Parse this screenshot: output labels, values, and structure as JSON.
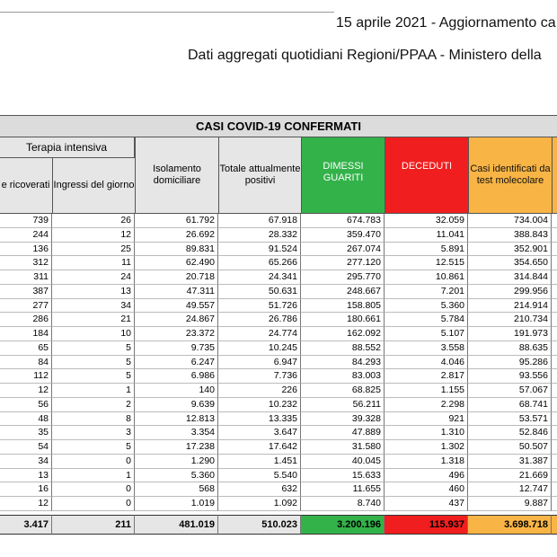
{
  "header": {
    "title": "15 aprile 2021 - Aggiornamento ca",
    "subtitle": "Dati aggregati quotidiani Regioni/PPAA - Ministero della"
  },
  "table": {
    "group_header": "CASI COVID-19 CONFERMATI",
    "subgroup_header": "Terapia intensiva",
    "columns": [
      "e ricoverati",
      "Ingressi del giorno",
      "Isolamento domiciliare",
      "Totale attualmente positivi",
      "DIMESSI GUARITI",
      "DECEDUTI",
      "Casi identificati da test molecolare"
    ],
    "rows": [
      [
        "739",
        "26",
        "61.792",
        "67.918",
        "674.783",
        "32.059",
        "734.004"
      ],
      [
        "244",
        "12",
        "26.692",
        "28.332",
        "359.470",
        "11.041",
        "388.843"
      ],
      [
        "136",
        "25",
        "89.831",
        "91.524",
        "267.074",
        "5.891",
        "352.901"
      ],
      [
        "312",
        "11",
        "62.490",
        "65.266",
        "277.120",
        "12.515",
        "354.650"
      ],
      [
        "311",
        "24",
        "20.718",
        "24.341",
        "295.770",
        "10.861",
        "314.844"
      ],
      [
        "387",
        "13",
        "47.311",
        "50.631",
        "248.667",
        "7.201",
        "299.956"
      ],
      [
        "277",
        "34",
        "49.557",
        "51.726",
        "158.805",
        "5.360",
        "214.914"
      ],
      [
        "286",
        "21",
        "24.867",
        "26.786",
        "180.661",
        "5.784",
        "210.734"
      ],
      [
        "184",
        "10",
        "23.372",
        "24.774",
        "162.092",
        "5.107",
        "191.973"
      ],
      [
        "65",
        "5",
        "9.735",
        "10.245",
        "88.552",
        "3.558",
        "88.635"
      ],
      [
        "84",
        "5",
        "6.247",
        "6.947",
        "84.293",
        "4.046",
        "95.286"
      ],
      [
        "112",
        "5",
        "6.986",
        "7.736",
        "83.003",
        "2.817",
        "93.556"
      ],
      [
        "12",
        "1",
        "140",
        "226",
        "68.825",
        "1.155",
        "57.067"
      ],
      [
        "56",
        "2",
        "9.639",
        "10.232",
        "56.211",
        "2.298",
        "68.741"
      ],
      [
        "48",
        "8",
        "12.813",
        "13.335",
        "39.328",
        "921",
        "53.571"
      ],
      [
        "35",
        "3",
        "3.354",
        "3.647",
        "47.889",
        "1.310",
        "52.846"
      ],
      [
        "54",
        "5",
        "17.238",
        "17.642",
        "31.580",
        "1.302",
        "50.507"
      ],
      [
        "34",
        "0",
        "1.290",
        "1.451",
        "40.045",
        "1.318",
        "31.387"
      ],
      [
        "13",
        "1",
        "5.360",
        "5.540",
        "15.633",
        "496",
        "21.669"
      ],
      [
        "16",
        "0",
        "568",
        "632",
        "11.655",
        "460",
        "12.747"
      ],
      [
        "12",
        "0",
        "1.019",
        "1.092",
        "8.740",
        "437",
        "9.887"
      ]
    ],
    "total": [
      "3.417",
      "211",
      "481.019",
      "510.023",
      "3.200.196",
      "115.937",
      "3.698.718"
    ]
  }
}
